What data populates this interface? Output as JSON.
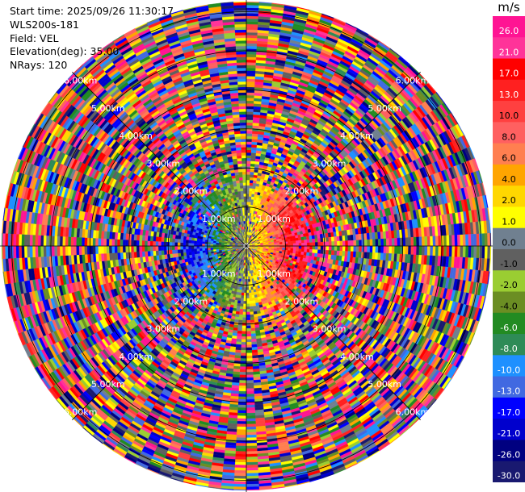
{
  "info": {
    "start_time": "Start time: 2025/09/26 11:30:17",
    "instrument": "WLS200s-181",
    "field": "Field: VEL",
    "elevation": "Elevation(deg): 35.00",
    "nrays": "NRays: 120"
  },
  "colorbar": {
    "unit": "m/s",
    "levels": [
      "26.0",
      "21.0",
      "17.0",
      "13.0",
      "10.0",
      "8.0",
      "6.0",
      "4.0",
      "2.0",
      "1.0",
      "0.0",
      "-1.0",
      "-2.0",
      "-4.0",
      "-6.0",
      "-8.0",
      "-10.0",
      "-13.0",
      "-17.0",
      "-21.0",
      "-26.0",
      "-30.0"
    ],
    "colors": [
      "#ff1493",
      "#ff3399",
      "#ff0000",
      "#ff2020",
      "#ff4040",
      "#ff6060",
      "#ff7f50",
      "#ffa500",
      "#ffd700",
      "#ffff00",
      "#708090",
      "#606060",
      "#9acd32",
      "#6b8e23",
      "#228b22",
      "#2e8b57",
      "#1e90ff",
      "#4169e1",
      "#0000ff",
      "#0000cd",
      "#000080",
      "#191970"
    ]
  },
  "chart_data": {
    "type": "heatmap",
    "projection": "polar",
    "field": "VEL",
    "units": "m/s",
    "elevation_deg": 35.0,
    "nrays": 120,
    "range_rings_km": [
      1.0,
      2.0,
      3.0,
      4.0,
      5.0,
      6.0
    ],
    "ring_labels": [
      "1.00km",
      "2.00km",
      "3.00km",
      "4.00km",
      "5.00km",
      "6.00km"
    ],
    "max_range_km": 6.3,
    "gate_km": 0.07,
    "pattern": "near-range radial velocity dipole: negative (green/blue) to west, positive (yellow/orange) to east; beyond about 2 km the signal is noise"
  }
}
